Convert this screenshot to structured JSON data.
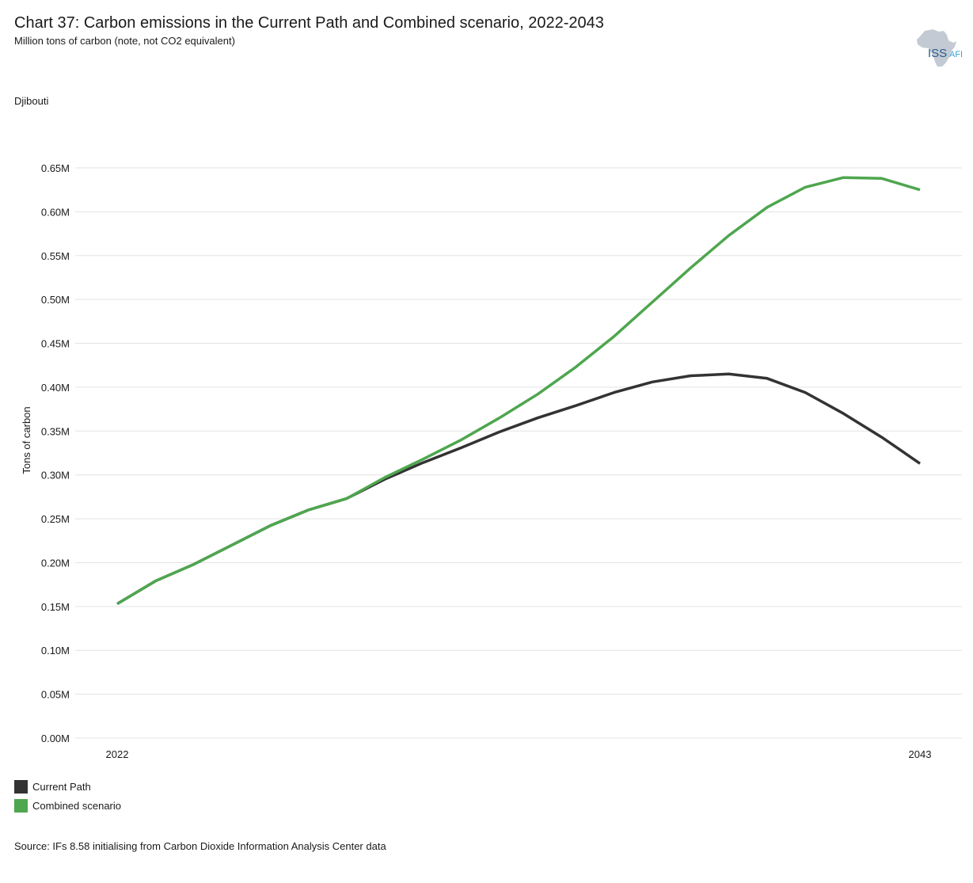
{
  "header": {
    "title": "Chart 37: Carbon emissions in the Current Path and Combined scenario, 2022-2043",
    "subtitle": "Million tons of carbon (note, not CO2 equivalent)",
    "country": "Djibouti"
  },
  "logo": {
    "text_main": "ISS",
    "text_accent": "AFI",
    "main_color": "#2a5b8c",
    "accent_color": "#3aa0d8",
    "map_color": "#c3cad3"
  },
  "source": "Source: IFs 8.58 initialising from Carbon Dioxide Information Analysis Center data",
  "chart_data": {
    "type": "line",
    "title": "Chart 37: Carbon emissions in the Current Path and Combined scenario, 2022-2043",
    "subtitle": "Million tons of carbon (note, not CO2 equivalent)",
    "ylabel": "Tons of carbon",
    "xlabel": "",
    "x": [
      2022,
      2023,
      2024,
      2025,
      2026,
      2027,
      2028,
      2029,
      2030,
      2031,
      2032,
      2033,
      2034,
      2035,
      2036,
      2037,
      2038,
      2039,
      2040,
      2041,
      2042,
      2043
    ],
    "x_tick_labels": [
      "2022",
      "2043"
    ],
    "ylim": [
      0,
      0.65
    ],
    "y_ticks": [
      0.0,
      0.05,
      0.1,
      0.15,
      0.2,
      0.25,
      0.3,
      0.35,
      0.4,
      0.45,
      0.5,
      0.55,
      0.6,
      0.65
    ],
    "y_tick_labels": [
      "0.00M",
      "0.05M",
      "0.10M",
      "0.15M",
      "0.20M",
      "0.25M",
      "0.30M",
      "0.35M",
      "0.40M",
      "0.45M",
      "0.50M",
      "0.55M",
      "0.60M",
      "0.65M"
    ],
    "grid": true,
    "legend_position": "bottom-left",
    "series": [
      {
        "name": "Current Path",
        "color": "#333333",
        "values": [
          0.153,
          0.179,
          0.198,
          0.22,
          0.242,
          0.26,
          0.273,
          0.295,
          0.314,
          0.331,
          0.349,
          0.365,
          0.379,
          0.394,
          0.406,
          0.413,
          0.415,
          0.41,
          0.394,
          0.37,
          0.343,
          0.313
        ]
      },
      {
        "name": "Combined scenario",
        "color": "#4ea64e",
        "values": [
          0.153,
          0.179,
          0.198,
          0.22,
          0.242,
          0.26,
          0.273,
          0.297,
          0.318,
          0.34,
          0.365,
          0.392,
          0.423,
          0.458,
          0.497,
          0.536,
          0.573,
          0.605,
          0.628,
          0.639,
          0.638,
          0.625
        ]
      }
    ]
  }
}
